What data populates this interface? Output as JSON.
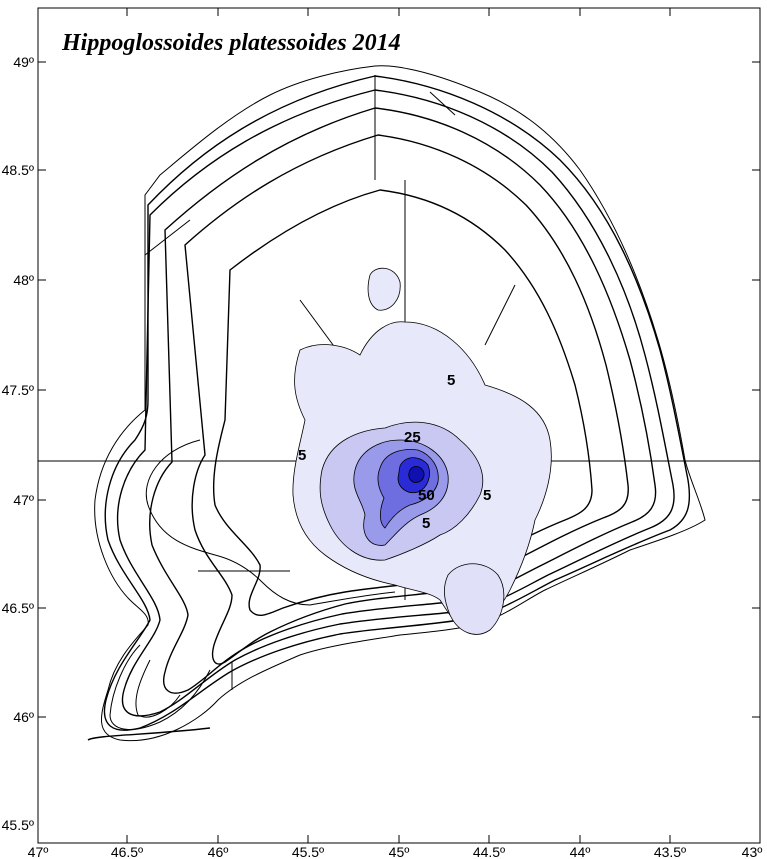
{
  "map": {
    "title": "Hippoglossoides platessoides 2014",
    "x_axis_ticks": [
      "47º",
      "46.5º",
      "46º",
      "45.5º",
      "45º",
      "44.5º",
      "44º",
      "43.5º",
      "43º"
    ],
    "y_axis_ticks": [
      "49º",
      "48.5º",
      "48º",
      "47.5º",
      "47º",
      "46.5º",
      "46º",
      "45.5º"
    ],
    "contour_labels": [
      "5",
      "5",
      "25",
      "50",
      "5",
      "5"
    ],
    "colors": {
      "fill_level_1": "#e8e8fb",
      "fill_level_2": "#c8c8f3",
      "fill_level_3": "#9a9aea",
      "fill_level_4": "#6e6ee0",
      "fill_level_5": "#2a2ad6",
      "line": "#000000"
    }
  }
}
